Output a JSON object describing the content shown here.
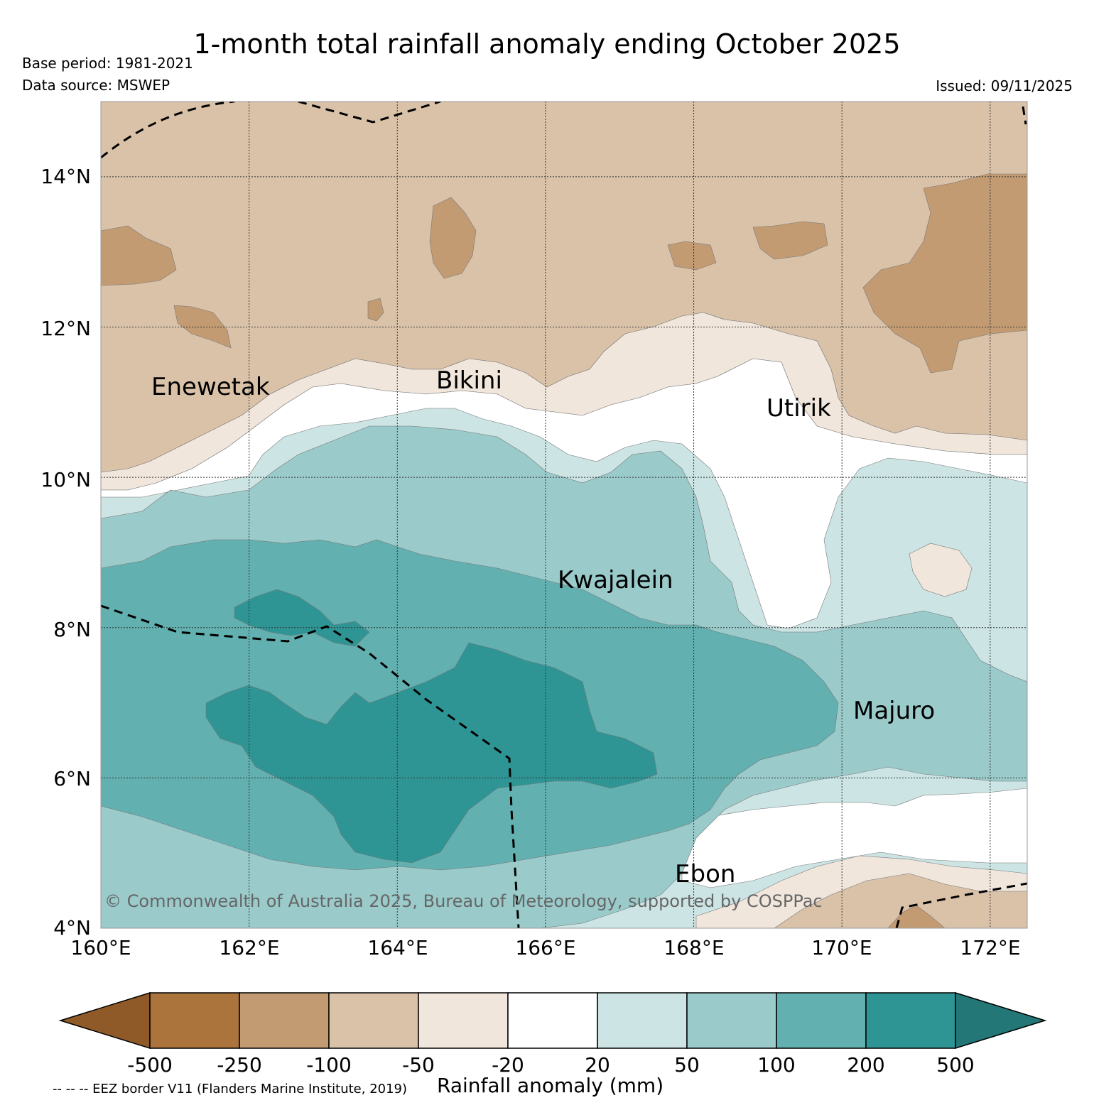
{
  "header": {
    "title": "1-month total rainfall anomaly ending October 2025",
    "base_period": "Base period: 1981-2021",
    "data_source": "Data source: MSWEP",
    "issued": "Issued: 09/11/2025"
  },
  "map": {
    "latitude_labels": [
      "14°N",
      "12°N",
      "10°N",
      "8°N",
      "6°N",
      "4°N"
    ],
    "longitude_labels": [
      "160°E",
      "162°E",
      "164°E",
      "166°E",
      "168°E",
      "170°E",
      "172°E"
    ],
    "lat_range": [
      4,
      15
    ],
    "lon_range": [
      160,
      172.5
    ],
    "places": {
      "enewetak": "Enewetak",
      "bikini": "Bikini",
      "utirik": "Utirik",
      "kwajalein": "Kwajalein",
      "majuro": "Majuro",
      "ebon": "Ebon"
    },
    "copyright": "© Commonwealth of Australia 2025, Bureau of Meteorology, supported by COSPPac"
  },
  "colorbar": {
    "title": "Rainfall anomaly (mm)",
    "ticks": [
      "-500",
      "-250",
      "-100",
      "-50",
      "-20",
      "20",
      "50",
      "100",
      "200",
      "500"
    ],
    "colors": [
      "#8f5a28",
      "#ab743d",
      "#c39b72",
      "#dac2a9",
      "#f0e6dc",
      "#ffffff",
      "#cce4e4",
      "#9acaca",
      "#62b0b0",
      "#2f9494",
      "#237777"
    ]
  },
  "footnote": "-- -- -- EEZ border V11 (Flanders Marine Institute, 2019)"
}
